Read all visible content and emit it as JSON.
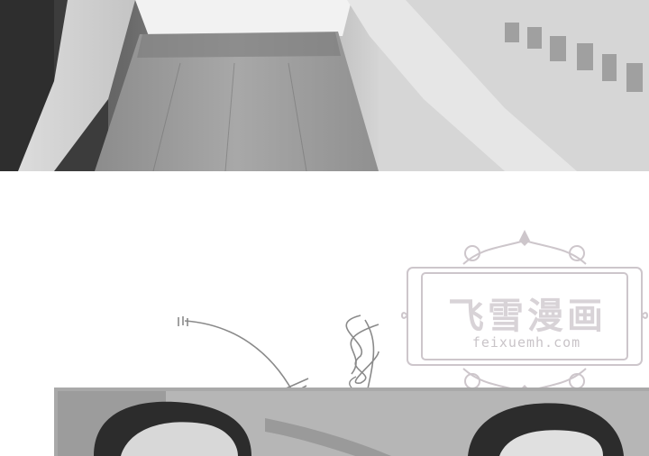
{
  "watermark": {
    "title": "飞雪漫画",
    "url": "feixuemh.com"
  },
  "colors": {
    "watermark_fill": "#d8d3d7",
    "frame_border": "#a9a9a9",
    "line": "#8a8a8a"
  },
  "icons": [
    "ornate-frame-icon",
    "sound-effect-scribble-icon"
  ]
}
